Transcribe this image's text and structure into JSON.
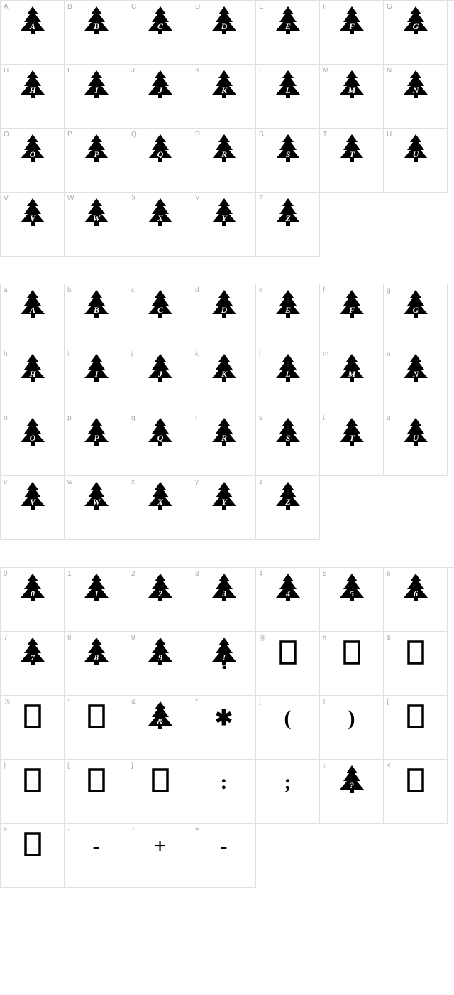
{
  "sections": [
    {
      "cells": [
        {
          "key": "A",
          "glyph": "tree",
          "letter": "A"
        },
        {
          "key": "B",
          "glyph": "tree",
          "letter": "B"
        },
        {
          "key": "C",
          "glyph": "tree",
          "letter": "C"
        },
        {
          "key": "D",
          "glyph": "tree",
          "letter": "D"
        },
        {
          "key": "E",
          "glyph": "tree",
          "letter": "E"
        },
        {
          "key": "F",
          "glyph": "tree",
          "letter": "F"
        },
        {
          "key": "G",
          "glyph": "tree",
          "letter": "G"
        },
        {
          "key": "H",
          "glyph": "tree",
          "letter": "H"
        },
        {
          "key": "I",
          "glyph": "tree",
          "letter": "I"
        },
        {
          "key": "J",
          "glyph": "tree",
          "letter": "J"
        },
        {
          "key": "K",
          "glyph": "tree",
          "letter": "K"
        },
        {
          "key": "L",
          "glyph": "tree",
          "letter": "L"
        },
        {
          "key": "M",
          "glyph": "tree",
          "letter": "M"
        },
        {
          "key": "N",
          "glyph": "tree",
          "letter": "N"
        },
        {
          "key": "O",
          "glyph": "tree",
          "letter": "O"
        },
        {
          "key": "P",
          "glyph": "tree",
          "letter": "P"
        },
        {
          "key": "Q",
          "glyph": "tree",
          "letter": "Q"
        },
        {
          "key": "R",
          "glyph": "tree",
          "letter": "R"
        },
        {
          "key": "S",
          "glyph": "tree",
          "letter": "S"
        },
        {
          "key": "T",
          "glyph": "tree",
          "letter": "T"
        },
        {
          "key": "U",
          "glyph": "tree",
          "letter": "U"
        },
        {
          "key": "V",
          "glyph": "tree",
          "letter": "V"
        },
        {
          "key": "W",
          "glyph": "tree",
          "letter": "W"
        },
        {
          "key": "X",
          "glyph": "tree",
          "letter": "X"
        },
        {
          "key": "Y",
          "glyph": "tree",
          "letter": "Y"
        },
        {
          "key": "Z",
          "glyph": "tree",
          "letter": "Z"
        },
        {
          "empty": true
        },
        {
          "empty": true
        }
      ]
    },
    {
      "cells": [
        {
          "key": "a",
          "glyph": "tree",
          "letter": "A"
        },
        {
          "key": "b",
          "glyph": "tree",
          "letter": "B"
        },
        {
          "key": "c",
          "glyph": "tree",
          "letter": "C"
        },
        {
          "key": "d",
          "glyph": "tree",
          "letter": "D"
        },
        {
          "key": "e",
          "glyph": "tree",
          "letter": "E"
        },
        {
          "key": "f",
          "glyph": "tree",
          "letter": "F"
        },
        {
          "key": "g",
          "glyph": "tree",
          "letter": "G"
        },
        {
          "key": "h",
          "glyph": "tree",
          "letter": "H"
        },
        {
          "key": "i",
          "glyph": "tree",
          "letter": "I"
        },
        {
          "key": "j",
          "glyph": "tree",
          "letter": "J"
        },
        {
          "key": "k",
          "glyph": "tree",
          "letter": "K"
        },
        {
          "key": "l",
          "glyph": "tree",
          "letter": "L"
        },
        {
          "key": "m",
          "glyph": "tree",
          "letter": "M"
        },
        {
          "key": "n",
          "glyph": "tree",
          "letter": "N"
        },
        {
          "key": "o",
          "glyph": "tree",
          "letter": "O"
        },
        {
          "key": "p",
          "glyph": "tree",
          "letter": "P"
        },
        {
          "key": "q",
          "glyph": "tree",
          "letter": "Q"
        },
        {
          "key": "r",
          "glyph": "tree",
          "letter": "R"
        },
        {
          "key": "s",
          "glyph": "tree",
          "letter": "S"
        },
        {
          "key": "t",
          "glyph": "tree",
          "letter": "T"
        },
        {
          "key": "u",
          "glyph": "tree",
          "letter": "U"
        },
        {
          "key": "v",
          "glyph": "tree",
          "letter": "V"
        },
        {
          "key": "w",
          "glyph": "tree",
          "letter": "W"
        },
        {
          "key": "x",
          "glyph": "tree",
          "letter": "X"
        },
        {
          "key": "y",
          "glyph": "tree",
          "letter": "Y"
        },
        {
          "key": "z",
          "glyph": "tree",
          "letter": "Z"
        },
        {
          "empty": true
        },
        {
          "empty": true
        }
      ]
    },
    {
      "cells": [
        {
          "key": "0",
          "glyph": "tree",
          "letter": "0"
        },
        {
          "key": "1",
          "glyph": "tree",
          "letter": "1"
        },
        {
          "key": "2",
          "glyph": "tree",
          "letter": "2"
        },
        {
          "key": "3",
          "glyph": "tree",
          "letter": "3"
        },
        {
          "key": "4",
          "glyph": "tree",
          "letter": "4"
        },
        {
          "key": "5",
          "glyph": "tree",
          "letter": "5"
        },
        {
          "key": "6",
          "glyph": "tree",
          "letter": "6"
        },
        {
          "key": "7",
          "glyph": "tree",
          "letter": "7"
        },
        {
          "key": "8",
          "glyph": "tree",
          "letter": "8"
        },
        {
          "key": "9",
          "glyph": "tree",
          "letter": "9"
        },
        {
          "key": "!",
          "glyph": "tree-dot",
          "letter": "!"
        },
        {
          "key": "@",
          "glyph": "box"
        },
        {
          "key": "#",
          "glyph": "box"
        },
        {
          "key": "$",
          "glyph": "box"
        },
        {
          "key": "%",
          "glyph": "box"
        },
        {
          "key": "^",
          "glyph": "box"
        },
        {
          "key": "&",
          "glyph": "tree",
          "letter": "&"
        },
        {
          "key": "*",
          "glyph": "text",
          "text": "✱"
        },
        {
          "key": "(",
          "glyph": "text",
          "text": "("
        },
        {
          "key": ")",
          "glyph": "text",
          "text": ")"
        },
        {
          "key": "{",
          "glyph": "box"
        },
        {
          "key": "}",
          "glyph": "box"
        },
        {
          "key": "[",
          "glyph": "box"
        },
        {
          "key": "]",
          "glyph": "box"
        },
        {
          "key": ":",
          "glyph": "text",
          "text": ":"
        },
        {
          "key": ";",
          "glyph": "text",
          "text": ";"
        },
        {
          "key": "?",
          "glyph": "tree",
          "letter": "?"
        },
        {
          "key": "<",
          "glyph": "box"
        },
        {
          "key": ">",
          "glyph": "box"
        },
        {
          "key": "-",
          "glyph": "text",
          "text": "-"
        },
        {
          "key": "+",
          "glyph": "text",
          "text": "+"
        },
        {
          "key": "=",
          "glyph": "text",
          "text": "-"
        },
        {
          "empty": true
        },
        {
          "empty": true
        },
        {
          "empty": true
        }
      ]
    }
  ],
  "style": {
    "border_color": "#e0e0e0",
    "label_color": "#aaaaaa",
    "glyph_color": "#000000",
    "cell_size": 90,
    "cols": 7
  }
}
